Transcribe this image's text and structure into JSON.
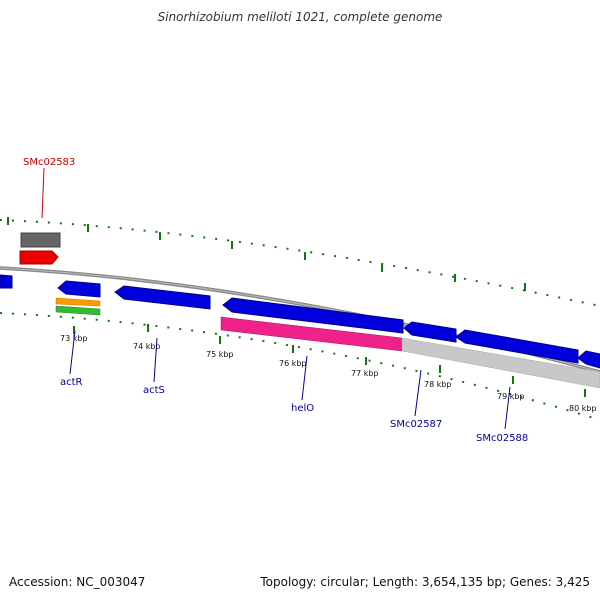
{
  "title": "Sinorhizobium meliloti 1021, complete genome",
  "footer": {
    "accession": "Accession: NC_003047",
    "topology": "Topology: circular; Length: 3,654,135 bp; Genes: 3,425"
  },
  "tick_labels": [
    "73 kbp",
    "74 kbp",
    "75 kbp",
    "76 kbp",
    "77 kbp",
    "78 kbp",
    "79 kbp",
    "80 kbp"
  ],
  "gene_labels": [
    {
      "name": "SMc02583",
      "color": "#cc0000"
    },
    {
      "name": "actR",
      "color": "#000099"
    },
    {
      "name": "actS",
      "color": "#000099"
    },
    {
      "name": "helO",
      "color": "#000099"
    },
    {
      "name": "SMc02587",
      "color": "#000099"
    },
    {
      "name": "SMc02588",
      "color": "#000099"
    }
  ],
  "colors": {
    "cds": "#0000dd",
    "forward_feature": "#ee0000",
    "gray_feature": "#666666",
    "orange_feature": "#ff9900",
    "green_feature": "#33bb33",
    "pink_feature": "#ee2288",
    "light_gray_feature": "#c8c8c8",
    "backbone": "#888888",
    "tick": "#117711",
    "label_forward": "#cc0000",
    "label_reverse": "#000099"
  }
}
